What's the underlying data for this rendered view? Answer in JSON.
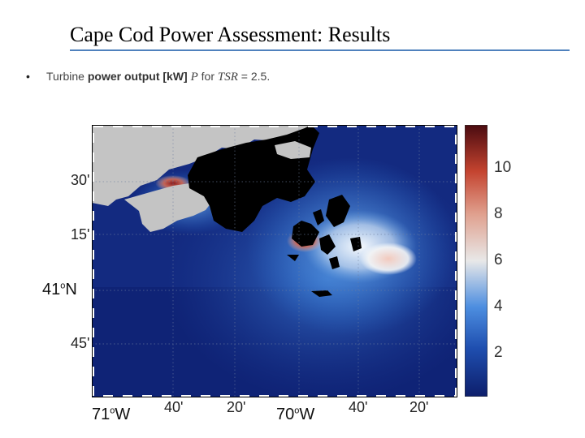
{
  "slide": {
    "title": "Cape Cod Power Assessment: Results",
    "bullet": {
      "marker": "•",
      "prefix": "Turbine ",
      "bold": "power output [kW]",
      "variable": "P",
      "middle": " for ",
      "param": "TSR",
      "value": " = 2.5."
    }
  },
  "map": {
    "colormap": [
      "#0d1e6b",
      "#2a6fce",
      "#e8e8e8",
      "#d4674f",
      "#5c0f12"
    ],
    "land_color": "#c4c4c4",
    "mask_color": "#000000",
    "lat_labels": [
      "30'",
      "15'",
      "41°N",
      "45'"
    ],
    "lon_labels": [
      "71°W",
      "40'",
      "20'",
      "70°W",
      "40'",
      "20'"
    ]
  },
  "colorbar": {
    "ticks": [
      "10",
      "8",
      "6",
      "4",
      "2"
    ]
  }
}
